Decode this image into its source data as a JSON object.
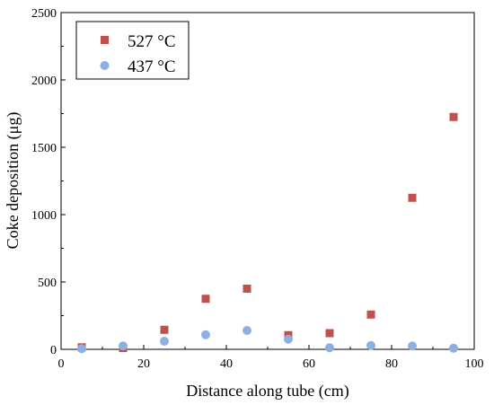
{
  "chart_data": {
    "type": "scatter",
    "title": "",
    "xlabel": "Distance along tube (cm)",
    "ylabel": "Coke deposition (μg)",
    "xlim": [
      0,
      100
    ],
    "ylim": [
      0,
      2500
    ],
    "x_ticks": [
      "0",
      "20",
      "40",
      "60",
      "80",
      "100"
    ],
    "y_ticks": [
      "0",
      "500",
      "1000",
      "1500",
      "2000",
      "2500"
    ],
    "grid": false,
    "legend_position": "top-left",
    "series": [
      {
        "name": "527 °C",
        "marker": "square",
        "color": "#c0504d",
        "points": [
          {
            "x": 5,
            "y": 15
          },
          {
            "x": 15,
            "y": 10
          },
          {
            "x": 25,
            "y": 145
          },
          {
            "x": 35,
            "y": 375
          },
          {
            "x": 45,
            "y": 450
          },
          {
            "x": 55,
            "y": 105
          },
          {
            "x": 65,
            "y": 120
          },
          {
            "x": 75,
            "y": 258
          },
          {
            "x": 85,
            "y": 1125
          },
          {
            "x": 95,
            "y": 1725
          }
        ]
      },
      {
        "name": "437 °C",
        "marker": "circle",
        "color": "#8eb0e0",
        "points": [
          {
            "x": 5,
            "y": 5
          },
          {
            "x": 15,
            "y": 25
          },
          {
            "x": 25,
            "y": 60
          },
          {
            "x": 35,
            "y": 108
          },
          {
            "x": 45,
            "y": 140
          },
          {
            "x": 55,
            "y": 75
          },
          {
            "x": 65,
            "y": 12
          },
          {
            "x": 75,
            "y": 28
          },
          {
            "x": 85,
            "y": 25
          },
          {
            "x": 95,
            "y": 8
          }
        ]
      }
    ]
  }
}
